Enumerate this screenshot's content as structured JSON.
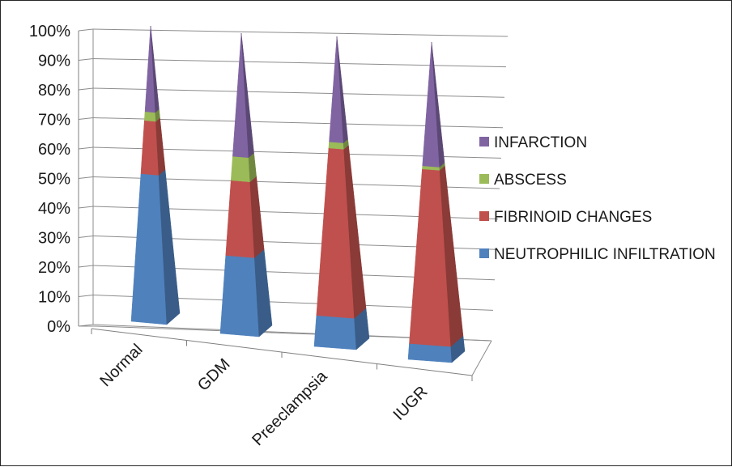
{
  "chart_data": {
    "type": "bar",
    "style": "3d-stacked-pyramid-100-percent",
    "title": "",
    "xlabel": "",
    "ylabel": "",
    "ylim": [
      0,
      100
    ],
    "yticks": [
      "0%",
      "10%",
      "20%",
      "30%",
      "40%",
      "50%",
      "60%",
      "70%",
      "80%",
      "90%",
      "100%"
    ],
    "grid": true,
    "legend_position": "right",
    "categories": [
      "Normal",
      "GDM",
      "Preeclampsia",
      "IUGR"
    ],
    "series": [
      {
        "name": "NEUTROPHILIC INFILTRATION",
        "color": "#4F81BD",
        "values": [
          50,
          26,
          10,
          5
        ]
      },
      {
        "name": "FIBRINOID CHANGES",
        "color": "#C0504D",
        "values": [
          18,
          25,
          54,
          55
        ]
      },
      {
        "name": "ABSCESS",
        "color": "#9BBB59",
        "values": [
          3,
          8,
          2,
          1
        ]
      },
      {
        "name": "INFARCTION",
        "color": "#8064A2",
        "values": [
          29,
          41,
          34,
          39
        ]
      }
    ],
    "legend_order": [
      "INFARCTION",
      "ABSCESS",
      "FIBRINOID CHANGES",
      "NEUTROPHILIC INFILTRATION"
    ]
  }
}
